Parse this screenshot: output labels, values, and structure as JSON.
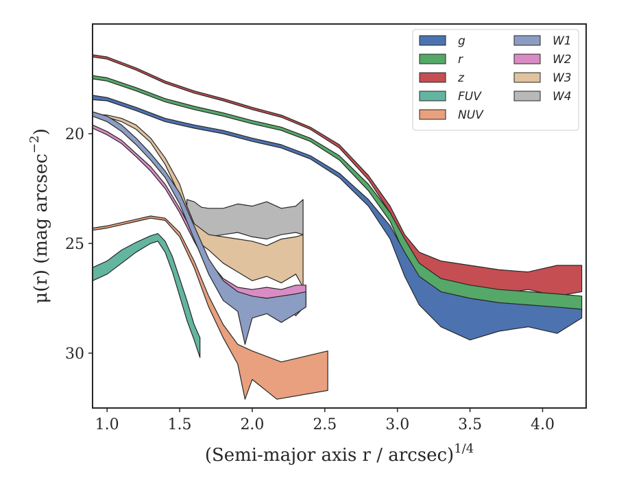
{
  "chart_data": {
    "type": "area",
    "xlabel": "(Semi-major axis r / arcsec)",
    "xlabel_exponent": "1/4",
    "ylabel": "μ(r) (mag arcsec",
    "ylabel_exponent": "−2",
    "ylabel_suffix": ")",
    "xlim": [
      0.9,
      4.3
    ],
    "ylim": [
      32.5,
      15.0
    ],
    "y_inverted": true,
    "xticks": [
      "1.0",
      "1.5",
      "2.0",
      "2.5",
      "3.0",
      "3.5",
      "4.0"
    ],
    "yticks": [
      "20",
      "25",
      "30"
    ],
    "grid": false,
    "legend_placement": "upper-right",
    "legend_columns": 2,
    "series": [
      {
        "key": "g",
        "name": "g",
        "color": "#4c72b0",
        "upper": [
          [
            0.9,
            18.25
          ],
          [
            1.0,
            18.35
          ],
          [
            1.2,
            18.8
          ],
          [
            1.4,
            19.3
          ],
          [
            1.6,
            19.6
          ],
          [
            1.8,
            19.85
          ],
          [
            2.0,
            20.2
          ],
          [
            2.2,
            20.5
          ],
          [
            2.4,
            21.0
          ],
          [
            2.6,
            21.8
          ],
          [
            2.8,
            23.0
          ],
          [
            2.95,
            24.2
          ],
          [
            3.05,
            25.4
          ],
          [
            3.15,
            26.5
          ],
          [
            3.3,
            27.2
          ],
          [
            3.5,
            27.5
          ],
          [
            3.7,
            27.7
          ],
          [
            3.9,
            27.8
          ],
          [
            4.1,
            27.9
          ],
          [
            4.27,
            28.0
          ]
        ],
        "lower": [
          [
            0.9,
            18.45
          ],
          [
            1.0,
            18.5
          ],
          [
            1.2,
            18.95
          ],
          [
            1.4,
            19.45
          ],
          [
            1.6,
            19.75
          ],
          [
            1.8,
            20.0
          ],
          [
            2.0,
            20.35
          ],
          [
            2.2,
            20.65
          ],
          [
            2.4,
            21.15
          ],
          [
            2.6,
            22.0
          ],
          [
            2.8,
            23.3
          ],
          [
            2.95,
            24.8
          ],
          [
            3.05,
            26.5
          ],
          [
            3.15,
            27.8
          ],
          [
            3.3,
            28.8
          ],
          [
            3.5,
            29.4
          ],
          [
            3.7,
            29.0
          ],
          [
            3.9,
            28.8
          ],
          [
            4.1,
            29.1
          ],
          [
            4.27,
            28.4
          ]
        ]
      },
      {
        "key": "r",
        "name": "r",
        "color": "#55a868",
        "upper": [
          [
            0.9,
            17.35
          ],
          [
            1.0,
            17.45
          ],
          [
            1.2,
            17.9
          ],
          [
            1.4,
            18.4
          ],
          [
            1.6,
            18.75
          ],
          [
            1.8,
            19.05
          ],
          [
            2.0,
            19.4
          ],
          [
            2.2,
            19.7
          ],
          [
            2.4,
            20.2
          ],
          [
            2.6,
            21.0
          ],
          [
            2.8,
            22.3
          ],
          [
            2.95,
            23.6
          ],
          [
            3.05,
            24.8
          ],
          [
            3.15,
            25.9
          ],
          [
            3.3,
            26.6
          ],
          [
            3.5,
            26.9
          ],
          [
            3.7,
            27.1
          ],
          [
            3.9,
            27.2
          ],
          [
            4.1,
            27.3
          ],
          [
            4.27,
            27.4
          ]
        ],
        "lower": [
          [
            0.9,
            17.5
          ],
          [
            1.0,
            17.6
          ],
          [
            1.2,
            18.05
          ],
          [
            1.4,
            18.55
          ],
          [
            1.6,
            18.9
          ],
          [
            1.8,
            19.2
          ],
          [
            2.0,
            19.55
          ],
          [
            2.2,
            19.85
          ],
          [
            2.4,
            20.35
          ],
          [
            2.6,
            21.2
          ],
          [
            2.8,
            22.6
          ],
          [
            2.95,
            24.0
          ],
          [
            3.05,
            25.5
          ],
          [
            3.15,
            26.9
          ],
          [
            3.3,
            27.9
          ],
          [
            3.5,
            28.3
          ],
          [
            3.7,
            28.0
          ],
          [
            3.9,
            28.2
          ],
          [
            4.1,
            28.4
          ],
          [
            4.27,
            28.1
          ]
        ]
      },
      {
        "key": "z",
        "name": "z",
        "color": "#c44e52",
        "upper": [
          [
            0.9,
            16.4
          ],
          [
            1.0,
            16.5
          ],
          [
            1.2,
            17.0
          ],
          [
            1.4,
            17.6
          ],
          [
            1.6,
            18.05
          ],
          [
            1.8,
            18.4
          ],
          [
            2.0,
            18.8
          ],
          [
            2.2,
            19.15
          ],
          [
            2.4,
            19.7
          ],
          [
            2.6,
            20.5
          ],
          [
            2.8,
            21.9
          ],
          [
            2.95,
            23.3
          ],
          [
            3.05,
            24.6
          ],
          [
            3.15,
            25.4
          ],
          [
            3.3,
            25.8
          ],
          [
            3.5,
            26.0
          ],
          [
            3.7,
            26.2
          ],
          [
            3.9,
            26.3
          ],
          [
            4.1,
            26.0
          ],
          [
            4.27,
            26.0
          ]
        ],
        "lower": [
          [
            0.9,
            16.5
          ],
          [
            1.0,
            16.6
          ],
          [
            1.2,
            17.1
          ],
          [
            1.4,
            17.7
          ],
          [
            1.6,
            18.15
          ],
          [
            1.8,
            18.5
          ],
          [
            2.0,
            18.9
          ],
          [
            2.2,
            19.25
          ],
          [
            2.4,
            19.8
          ],
          [
            2.6,
            20.65
          ],
          [
            2.8,
            22.1
          ],
          [
            2.95,
            23.6
          ],
          [
            3.05,
            25.3
          ],
          [
            3.15,
            26.5
          ],
          [
            3.3,
            27.1
          ],
          [
            3.5,
            27.0
          ],
          [
            3.7,
            27.3
          ],
          [
            3.9,
            27.1
          ],
          [
            4.1,
            27.4
          ],
          [
            4.27,
            27.2
          ]
        ]
      },
      {
        "key": "FUV",
        "name": "FUV",
        "color": "#64b5a0",
        "upper": [
          [
            0.9,
            26.1
          ],
          [
            1.0,
            25.8
          ],
          [
            1.1,
            25.3
          ],
          [
            1.2,
            24.95
          ],
          [
            1.3,
            24.65
          ],
          [
            1.35,
            24.55
          ],
          [
            1.4,
            24.9
          ],
          [
            1.45,
            25.6
          ],
          [
            1.5,
            26.6
          ],
          [
            1.55,
            27.6
          ],
          [
            1.6,
            28.7
          ],
          [
            1.64,
            29.3
          ]
        ],
        "lower": [
          [
            0.9,
            26.7
          ],
          [
            1.0,
            26.4
          ],
          [
            1.1,
            25.9
          ],
          [
            1.2,
            25.4
          ],
          [
            1.3,
            25.0
          ],
          [
            1.35,
            24.9
          ],
          [
            1.4,
            25.4
          ],
          [
            1.45,
            26.3
          ],
          [
            1.5,
            27.4
          ],
          [
            1.55,
            28.5
          ],
          [
            1.6,
            29.4
          ],
          [
            1.64,
            30.2
          ]
        ]
      },
      {
        "key": "NUV",
        "name": "NUV",
        "color": "#e8a07e",
        "upper": [
          [
            0.9,
            24.3
          ],
          [
            1.0,
            24.2
          ],
          [
            1.1,
            24.05
          ],
          [
            1.2,
            23.9
          ],
          [
            1.3,
            23.75
          ],
          [
            1.4,
            23.85
          ],
          [
            1.5,
            24.5
          ],
          [
            1.6,
            25.8
          ],
          [
            1.7,
            27.4
          ],
          [
            1.8,
            28.7
          ],
          [
            1.9,
            29.6
          ],
          [
            2.0,
            29.9
          ],
          [
            2.2,
            30.4
          ],
          [
            2.52,
            29.9
          ]
        ],
        "lower": [
          [
            0.9,
            24.4
          ],
          [
            1.0,
            24.3
          ],
          [
            1.1,
            24.15
          ],
          [
            1.2,
            24.0
          ],
          [
            1.3,
            23.85
          ],
          [
            1.4,
            23.95
          ],
          [
            1.5,
            24.7
          ],
          [
            1.6,
            26.1
          ],
          [
            1.7,
            27.9
          ],
          [
            1.8,
            29.3
          ],
          [
            1.9,
            30.5
          ],
          [
            1.95,
            32.1
          ],
          [
            2.0,
            31.2
          ],
          [
            2.17,
            32.1
          ],
          [
            2.52,
            31.7
          ]
        ]
      },
      {
        "key": "W1",
        "name": "W1",
        "color": "#8c9dc4",
        "upper": [
          [
            0.9,
            19.0
          ],
          [
            1.0,
            19.2
          ],
          [
            1.1,
            19.6
          ],
          [
            1.2,
            20.2
          ],
          [
            1.3,
            20.9
          ],
          [
            1.4,
            21.7
          ],
          [
            1.5,
            22.7
          ],
          [
            1.6,
            24.2
          ],
          [
            1.7,
            25.7
          ],
          [
            1.8,
            26.7
          ],
          [
            1.9,
            27.2
          ],
          [
            2.0,
            27.4
          ],
          [
            2.1,
            27.5
          ],
          [
            2.2,
            27.4
          ],
          [
            2.3,
            27.3
          ],
          [
            2.37,
            27.2
          ]
        ],
        "lower": [
          [
            0.9,
            19.2
          ],
          [
            1.0,
            19.45
          ],
          [
            1.1,
            19.9
          ],
          [
            1.2,
            20.5
          ],
          [
            1.3,
            21.2
          ],
          [
            1.4,
            22.0
          ],
          [
            1.5,
            23.2
          ],
          [
            1.6,
            24.8
          ],
          [
            1.7,
            26.4
          ],
          [
            1.8,
            27.6
          ],
          [
            1.9,
            28.1
          ],
          [
            1.95,
            29.6
          ],
          [
            2.0,
            28.4
          ],
          [
            2.1,
            28.2
          ],
          [
            2.2,
            28.6
          ],
          [
            2.3,
            28.2
          ],
          [
            2.37,
            27.9
          ]
        ]
      },
      {
        "key": "W2",
        "name": "W2",
        "color": "#d98cc4",
        "upper": [
          [
            0.9,
            19.6
          ],
          [
            1.0,
            19.9
          ],
          [
            1.1,
            20.3
          ],
          [
            1.2,
            20.9
          ],
          [
            1.3,
            21.5
          ],
          [
            1.4,
            22.3
          ],
          [
            1.5,
            23.4
          ],
          [
            1.6,
            24.6
          ],
          [
            1.7,
            25.8
          ],
          [
            1.8,
            26.6
          ],
          [
            1.9,
            27.0
          ],
          [
            2.0,
            27.1
          ],
          [
            2.1,
            27.0
          ],
          [
            2.2,
            27.1
          ],
          [
            2.3,
            26.9
          ],
          [
            2.37,
            26.9
          ]
        ],
        "lower": [
          [
            0.9,
            19.75
          ],
          [
            1.0,
            20.05
          ],
          [
            1.1,
            20.45
          ],
          [
            1.2,
            21.05
          ],
          [
            1.3,
            21.7
          ],
          [
            1.4,
            22.5
          ],
          [
            1.5,
            23.6
          ],
          [
            1.6,
            24.9
          ],
          [
            1.7,
            26.1
          ],
          [
            1.8,
            27.0
          ],
          [
            1.9,
            27.6
          ],
          [
            2.0,
            27.9
          ],
          [
            2.1,
            28.0
          ],
          [
            2.2,
            27.7
          ],
          [
            2.3,
            28.3
          ],
          [
            2.37,
            27.8
          ]
        ]
      },
      {
        "key": "W3",
        "name": "W3",
        "color": "#e0c29e",
        "upper": [
          [
            0.9,
            19.1
          ],
          [
            1.0,
            19.15
          ],
          [
            1.1,
            19.3
          ],
          [
            1.2,
            19.6
          ],
          [
            1.3,
            20.2
          ],
          [
            1.4,
            21.1
          ],
          [
            1.5,
            22.3
          ],
          [
            1.55,
            23.3
          ],
          [
            1.6,
            24.1
          ],
          [
            1.7,
            24.6
          ],
          [
            1.8,
            24.7
          ],
          [
            1.9,
            24.8
          ],
          [
            2.0,
            24.9
          ],
          [
            2.1,
            25.1
          ],
          [
            2.2,
            24.8
          ],
          [
            2.3,
            24.7
          ],
          [
            2.35,
            24.6
          ]
        ],
        "lower": [
          [
            0.9,
            19.2
          ],
          [
            1.0,
            19.25
          ],
          [
            1.1,
            19.45
          ],
          [
            1.2,
            19.8
          ],
          [
            1.3,
            20.4
          ],
          [
            1.4,
            21.4
          ],
          [
            1.5,
            22.8
          ],
          [
            1.55,
            24.0
          ],
          [
            1.6,
            24.8
          ],
          [
            1.7,
            25.3
          ],
          [
            1.8,
            25.9
          ],
          [
            1.9,
            26.3
          ],
          [
            2.0,
            26.7
          ],
          [
            2.1,
            26.5
          ],
          [
            2.2,
            26.8
          ],
          [
            2.3,
            26.4
          ],
          [
            2.35,
            27.0
          ]
        ]
      },
      {
        "key": "W4",
        "name": "W4",
        "color": "#b8b8b8",
        "upper": [
          [
            1.55,
            23.0
          ],
          [
            1.6,
            23.1
          ],
          [
            1.65,
            23.35
          ],
          [
            1.7,
            23.4
          ],
          [
            1.8,
            23.4
          ],
          [
            1.9,
            23.2
          ],
          [
            2.0,
            23.3
          ],
          [
            2.1,
            23.1
          ],
          [
            2.2,
            23.4
          ],
          [
            2.3,
            23.3
          ],
          [
            2.35,
            23.0
          ]
        ],
        "lower": [
          [
            1.55,
            23.3
          ],
          [
            1.6,
            24.1
          ],
          [
            1.65,
            24.9
          ],
          [
            1.7,
            24.7
          ],
          [
            1.8,
            24.6
          ],
          [
            1.9,
            24.5
          ],
          [
            2.0,
            24.7
          ],
          [
            2.1,
            24.8
          ],
          [
            2.2,
            24.6
          ],
          [
            2.3,
            24.5
          ],
          [
            2.35,
            24.6
          ]
        ]
      }
    ]
  }
}
